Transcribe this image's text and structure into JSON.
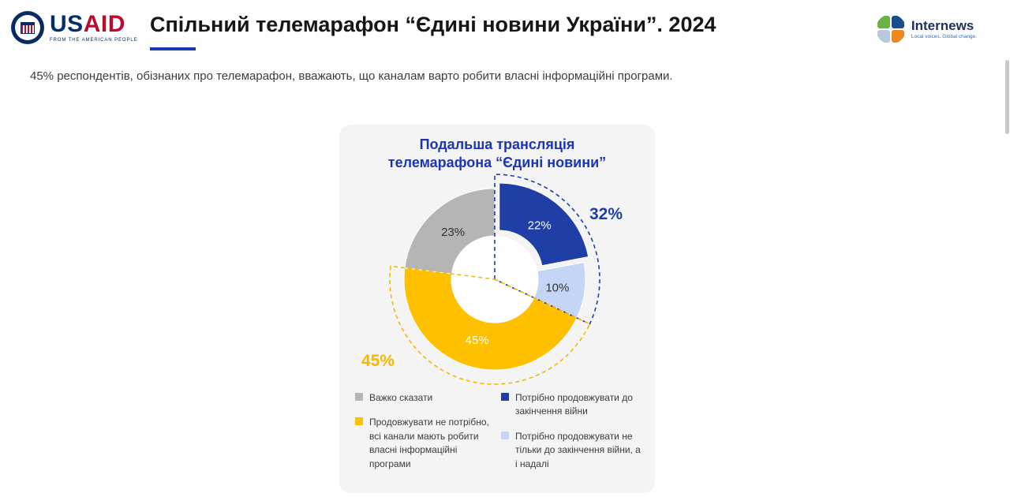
{
  "header": {
    "title": "Спільний телемарафон “Єдині новини України”. 2024",
    "usaid": {
      "word_us": "US",
      "word_aid": "AID",
      "tagline": "FROM THE AMERICAN PEOPLE"
    },
    "internews": {
      "name": "Internews",
      "tagline": "Local voices. Global change."
    }
  },
  "subtitle": "45% респондентів, обізнаних про телемарафон, вважають, що каналам варто робити власні інформаційні програми.",
  "colors": {
    "accent_blue": "#1c35b5",
    "card_bg": "#f4f4f5"
  },
  "chart_data": {
    "type": "pie",
    "donut": true,
    "title": "Подальша трансляція телемарафона “Єдині новини”",
    "title_line1": "Подальша трансляція",
    "title_line2": "телемарафона “Єдині новини”",
    "categories": [
      "Потрібно продовжувати до закінчення війни",
      "Потрібно продовжувати не тільки до закінчення війни, а і надалі",
      "Продовжувати не потрібно, всі канали мають робити власні інформаційні програми",
      "Важко сказати"
    ],
    "values": [
      22,
      10,
      45,
      23
    ],
    "slices": [
      {
        "id": "continue-until-war-end",
        "value": 22,
        "label": "22%",
        "color": "#1F3FA6",
        "label_color": "#ffffff",
        "exploded": true,
        "legend": "Потрібно продовжувати до закінчення війни"
      },
      {
        "id": "continue-beyond-war",
        "value": 10,
        "label": "10%",
        "color": "#C5D5F5",
        "label_color": "#333333",
        "exploded": false,
        "legend": "Потрібно продовжувати не тільки до закінчення війни, а і надалі"
      },
      {
        "id": "no-need-continue",
        "value": 45,
        "label": "45%",
        "color": "#FFC000",
        "label_color": "#ffffff",
        "exploded": false,
        "legend": "Продовжувати не потрібно, всі канали мають робити власні інформаційні програми"
      },
      {
        "id": "hard-to-say",
        "value": 23,
        "label": "23%",
        "color": "#B5B5B5",
        "label_color": "#333333",
        "exploded": false,
        "legend": "Важко сказати"
      }
    ],
    "groups": [
      {
        "label": "32%",
        "start_pct": 0,
        "end_pct": 32,
        "color": "#1F3FA6"
      },
      {
        "label": "45%",
        "start_pct": 32,
        "end_pct": 77,
        "color": "#F5B800"
      }
    ],
    "legend_position": "bottom"
  }
}
